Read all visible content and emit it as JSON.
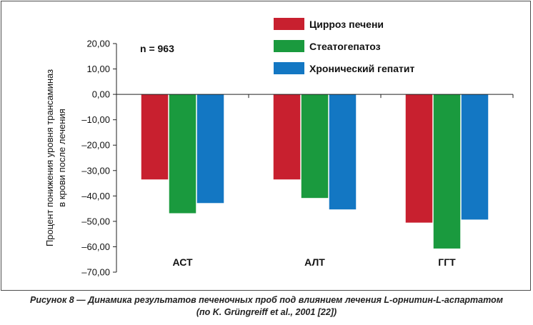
{
  "chart_data": {
    "type": "bar",
    "categories": [
      "АСТ",
      "АЛТ",
      "ГГТ"
    ],
    "series": [
      {
        "name": "Цирроз печени",
        "color": "#c8202f",
        "values": [
          -33.5,
          -33.5,
          -50.5
        ]
      },
      {
        "name": "Стеатогепатоз",
        "color": "#1a9a3e",
        "values": [
          -46.8,
          -40.8,
          -60.7
        ]
      },
      {
        "name": "Хронический гепатит",
        "color": "#1377c3",
        "values": [
          -42.8,
          -45.3,
          -49.3
        ]
      }
    ],
    "ylabel_line1": "Процент понижения уровня трансаминаз",
    "ylabel_line2": "в крови после лечения",
    "annotation": "n = 963",
    "ylim": [
      -70,
      20
    ],
    "yticks": [
      20,
      10,
      0,
      -10,
      -20,
      -30,
      -40,
      -50,
      -60,
      -70
    ],
    "ytick_labels": [
      "20,00",
      "10,00",
      "0,00",
      "–10,00",
      "–20,00",
      "–30,00",
      "–40,00",
      "–50,00",
      "–60,00",
      "–70,00"
    ],
    "grid": false,
    "legend_position": "top-right"
  },
  "caption": {
    "line1": "Рисунок 8 — Динамика результатов печеночных проб под влиянием лечения L-орнитин-L-аспартатом",
    "line2": "(по K. Grüngreiff et al., 2001 [22])"
  }
}
